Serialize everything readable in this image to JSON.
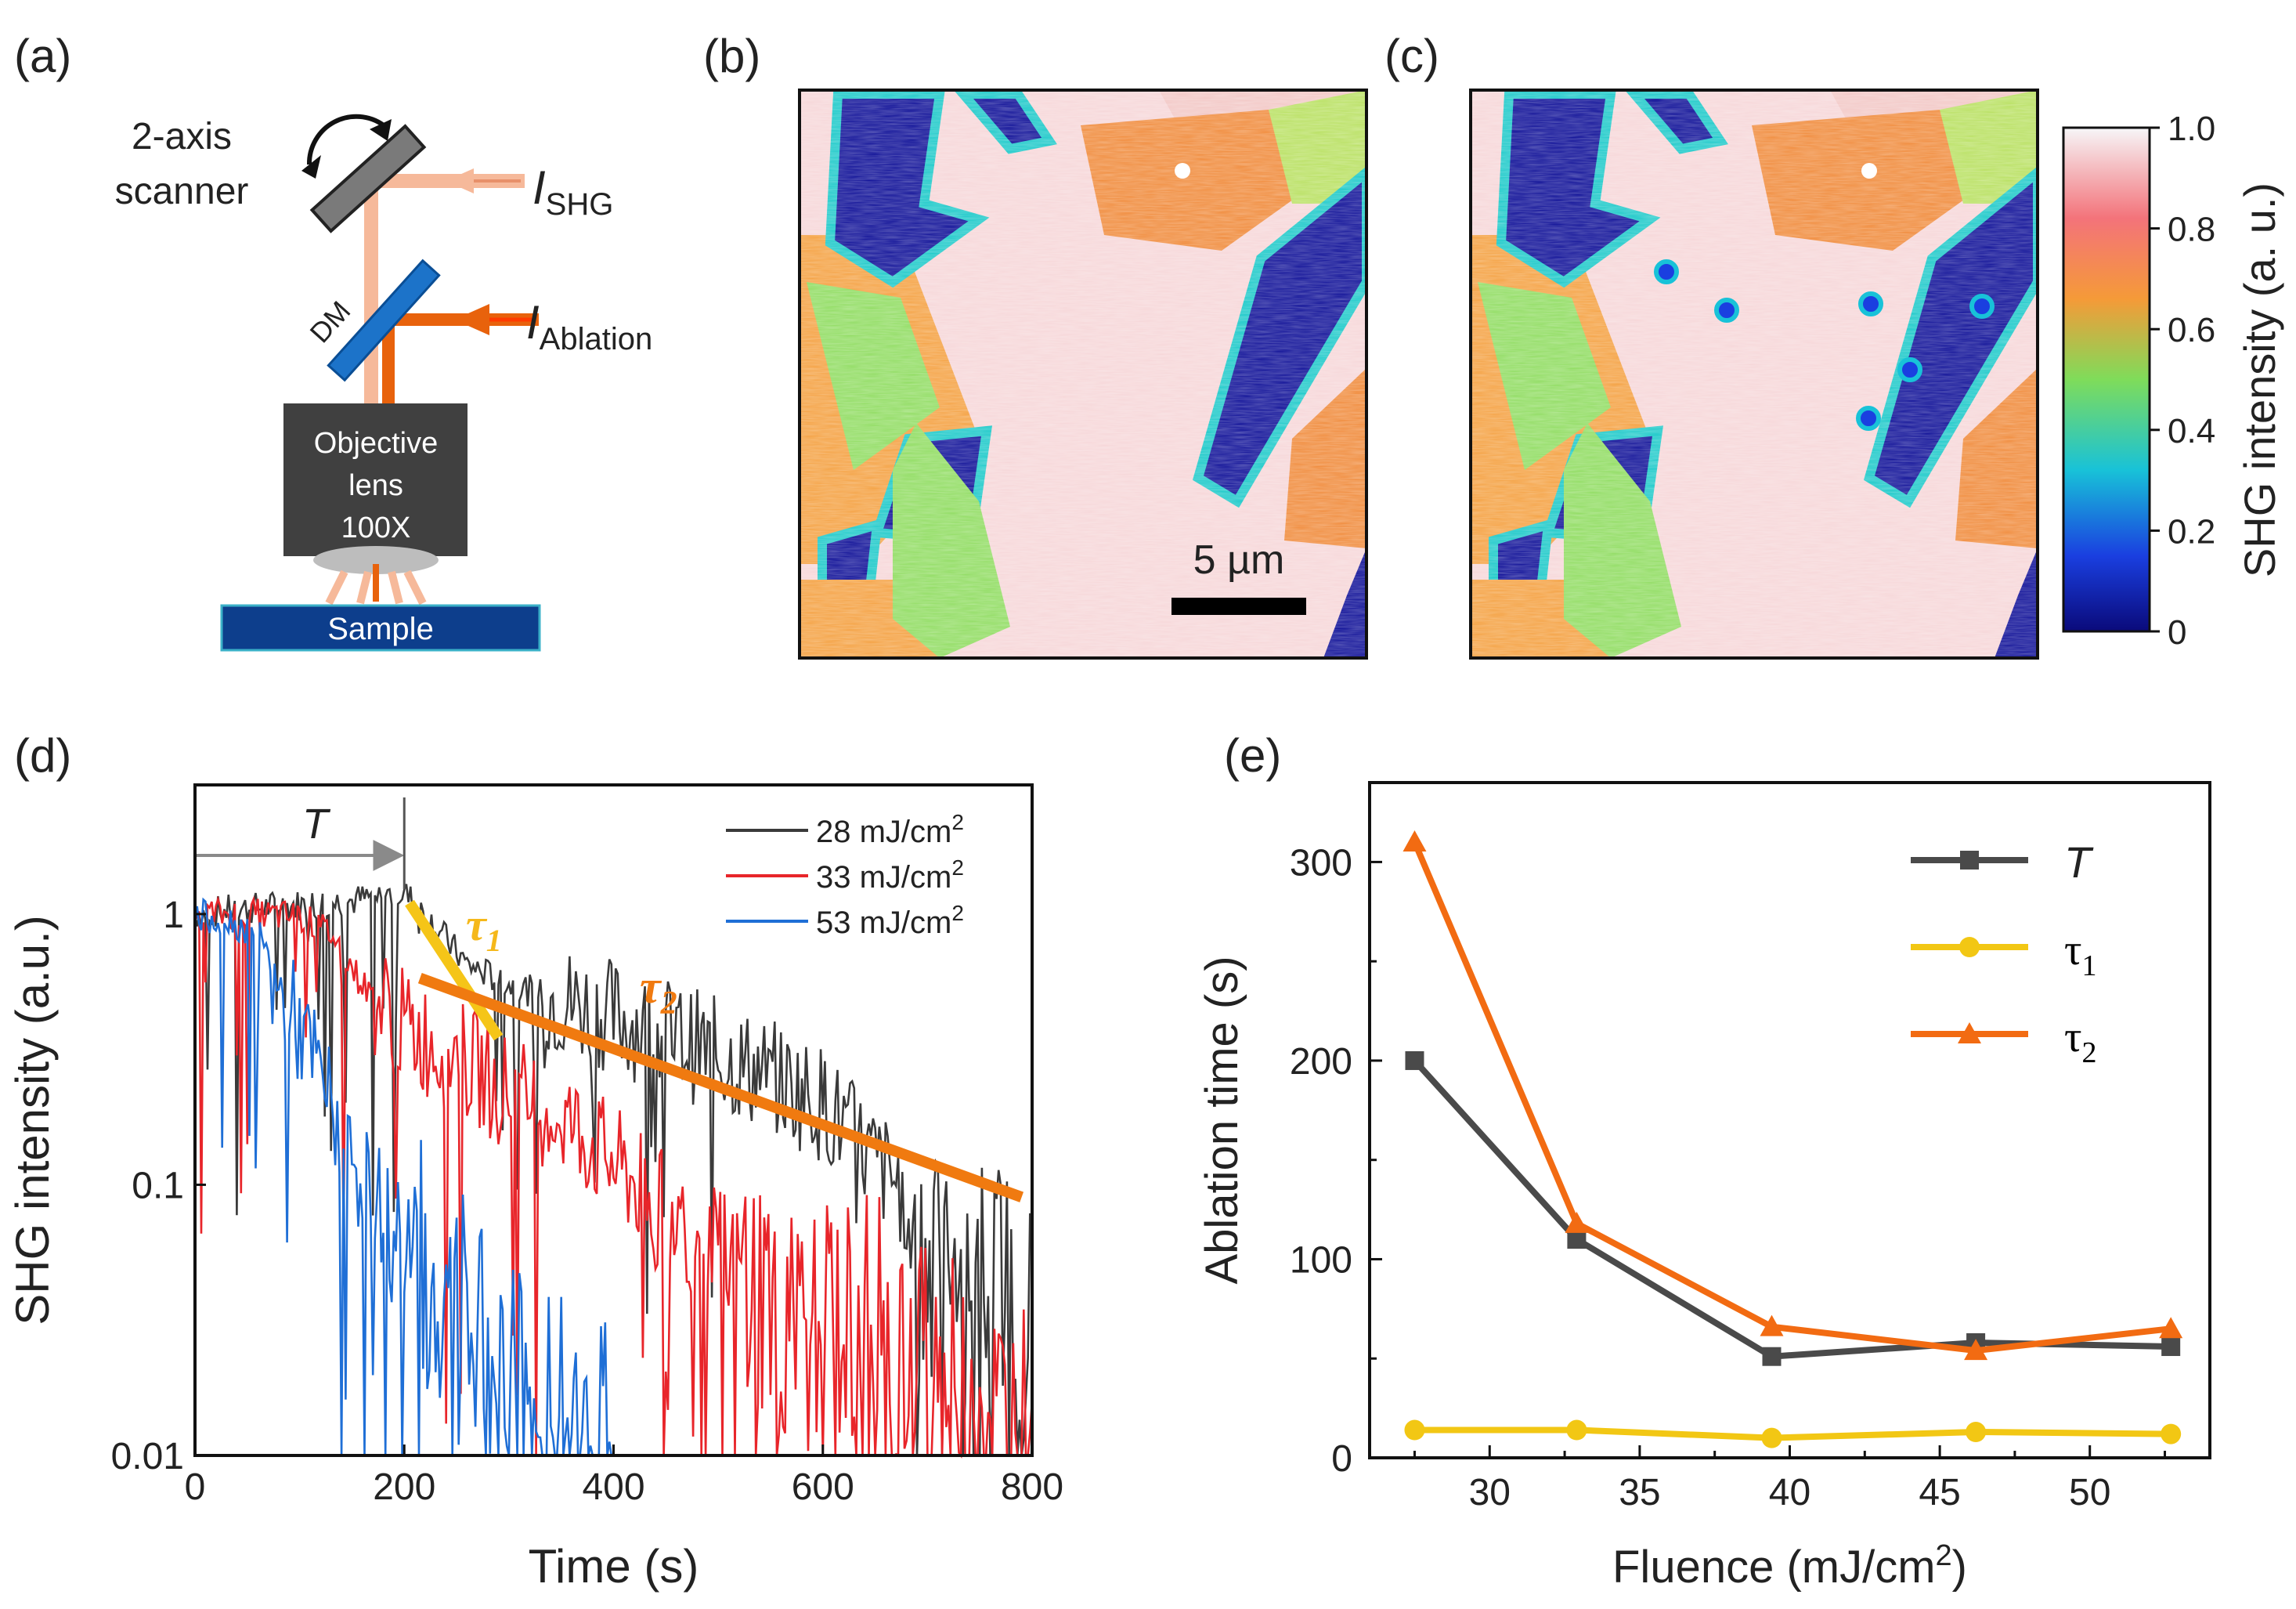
{
  "panels": {
    "a": {
      "label": "(a)",
      "scanner_label": [
        "2-axis",
        "scanner"
      ],
      "dm_label": "DM",
      "beam_shg": {
        "base": "I",
        "sub": "SHG"
      },
      "beam_ablation": {
        "base": "I",
        "sub": "Ablation"
      },
      "objective_label": [
        "Objective",
        "lens",
        "100X"
      ],
      "sample_label": "Sample",
      "colors": {
        "shg_beam": "#f6b99a",
        "ablation_beam": "#e8620c",
        "dm": "#1c73c9",
        "objective": "#404040",
        "sample": "#0d3e8c"
      }
    },
    "b": {
      "label": "(b)",
      "scale_bar_label": "5 µm"
    },
    "c": {
      "label": "(c)",
      "colorbar": {
        "title": "SHG intensity (a. u.)",
        "ticks": [
          "1.0",
          "0.8",
          "0.6",
          "0.4",
          "0.2",
          "0"
        ],
        "colors": [
          "#f6f6f8",
          "#f3737a",
          "#f59a38",
          "#7fdc5a",
          "#18c2d8",
          "#1a3fe0",
          "#0a0a7a"
        ]
      }
    },
    "d": {
      "label": "(d)",
      "T_label": "T",
      "tau1_label": "τ",
      "tau1_sub": "1",
      "tau2_label": "τ",
      "tau2_sub": "2"
    },
    "e": {
      "label": "(e)"
    }
  },
  "chart_data": [
    {
      "id": "d",
      "type": "line",
      "xlabel": "Time (s)",
      "ylabel": "SHG intensity (a.u.)",
      "yscale": "log",
      "xlim": [
        0,
        800
      ],
      "ylim": [
        0.01,
        3
      ],
      "xticks": [
        "0",
        "200",
        "400",
        "600",
        "800"
      ],
      "yticks": [
        "1",
        "0.1",
        "0.01"
      ],
      "legend_position": "top-right",
      "T_arrow": [
        0,
        200
      ],
      "series": [
        {
          "name": "28 mJ/cm",
          "sup": "2",
          "color": "#3a3a3a",
          "points": [
            [
              0,
              1
            ],
            [
              50,
              1.05
            ],
            [
              100,
              1.08
            ],
            [
              150,
              1.12
            ],
            [
              200,
              1.2
            ],
            [
              230,
              0.9
            ],
            [
              260,
              0.65
            ],
            [
              300,
              0.55
            ],
            [
              350,
              0.48
            ],
            [
              400,
              0.42
            ],
            [
              450,
              0.36
            ],
            [
              500,
              0.3
            ],
            [
              550,
              0.25
            ],
            [
              600,
              0.2
            ],
            [
              650,
              0.12
            ],
            [
              700,
              0.08
            ],
            [
              750,
              0.05
            ],
            [
              800,
              0.03
            ]
          ]
        },
        {
          "name": "33 mJ/cm",
          "sup": "2",
          "color": "#e8252a",
          "points": [
            [
              0,
              1
            ],
            [
              50,
              1
            ],
            [
              100,
              0.98
            ],
            [
              130,
              0.85
            ],
            [
              160,
              0.55
            ],
            [
              200,
              0.38
            ],
            [
              250,
              0.3
            ],
            [
              300,
              0.22
            ],
            [
              350,
              0.18
            ],
            [
              400,
              0.12
            ],
            [
              450,
              0.08
            ],
            [
              500,
              0.06
            ],
            [
              550,
              0.04
            ],
            [
              600,
              0.03
            ],
            [
              650,
              0.03
            ],
            [
              700,
              0.02
            ],
            [
              750,
              0.015
            ],
            [
              800,
              0.012
            ]
          ]
        },
        {
          "name": "53 mJ/cm",
          "sup": "2",
          "color": "#1f6fd6",
          "points": [
            [
              0,
              1
            ],
            [
              30,
              0.95
            ],
            [
              60,
              0.85
            ],
            [
              90,
              0.45
            ],
            [
              120,
              0.25
            ],
            [
              150,
              0.12
            ],
            [
              180,
              0.08
            ],
            [
              210,
              0.05
            ],
            [
              240,
              0.035
            ],
            [
              270,
              0.025
            ],
            [
              300,
              0.02
            ],
            [
              330,
              0.015
            ],
            [
              360,
              0.012
            ],
            [
              400,
              0.01
            ]
          ]
        }
      ],
      "fit_lines": [
        {
          "name": "tau1",
          "color": "#f5c518",
          "points": [
            [
              205,
              1.1
            ],
            [
              290,
              0.35
            ]
          ]
        },
        {
          "name": "tau2",
          "color": "#f07a10",
          "points": [
            [
              215,
              0.58
            ],
            [
              790,
              0.09
            ]
          ]
        }
      ]
    },
    {
      "id": "e",
      "type": "line",
      "xlabel": "Fluence (mJ/cm",
      "xlabel_sup": "2",
      "xlabel_end": ")",
      "ylabel": "Ablation time (s)",
      "xlim": [
        26,
        54
      ],
      "ylim": [
        0,
        340
      ],
      "xticks": [
        "30",
        "35",
        "40",
        "45",
        "50"
      ],
      "yticks": [
        "0",
        "100",
        "200",
        "300"
      ],
      "legend_position": "top-right",
      "series": [
        {
          "name": "T",
          "marker": "square",
          "color": "#4a4a4a",
          "x": [
            27.5,
            32.9,
            39.4,
            46.2,
            52.7
          ],
          "values": [
            200,
            110,
            51,
            58,
            56
          ]
        },
        {
          "name": "τ",
          "sub": "1",
          "marker": "circle",
          "color": "#f2c714",
          "x": [
            27.5,
            32.9,
            39.4,
            46.2,
            52.7
          ],
          "values": [
            14,
            14,
            10,
            13,
            12
          ]
        },
        {
          "name": "τ",
          "sub": "2",
          "marker": "triangle",
          "color": "#f26b12",
          "x": [
            27.5,
            32.9,
            39.4,
            46.2,
            52.7
          ],
          "values": [
            310,
            118,
            66,
            54,
            65
          ]
        }
      ]
    }
  ]
}
